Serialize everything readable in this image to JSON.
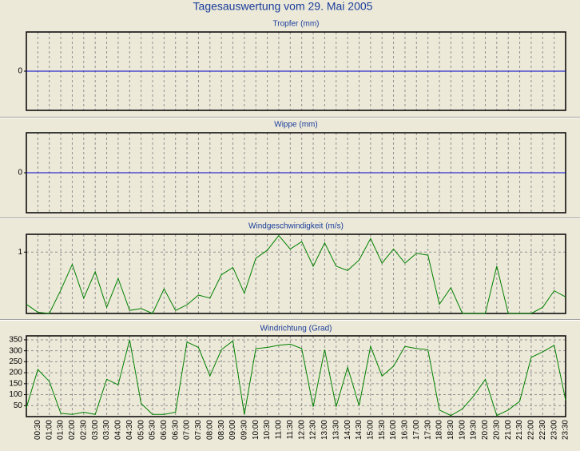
{
  "title": "Tagesauswertung vom 29. Mai 2005",
  "chart_data": [
    {
      "type": "line",
      "title": "Tropfer (mm)",
      "color": "#0000cc",
      "ylim": [
        -1,
        1
      ],
      "yticks": [
        0
      ],
      "grid": true,
      "values": [
        0,
        0,
        0,
        0,
        0,
        0,
        0,
        0,
        0,
        0,
        0,
        0,
        0,
        0,
        0,
        0,
        0,
        0,
        0,
        0,
        0,
        0,
        0,
        0,
        0,
        0,
        0,
        0,
        0,
        0,
        0,
        0,
        0,
        0,
        0,
        0,
        0,
        0,
        0,
        0,
        0,
        0,
        0,
        0,
        0,
        0,
        0,
        0
      ]
    },
    {
      "type": "line",
      "title": "Wippe (mm)",
      "color": "#0000cc",
      "ylim": [
        -1,
        1
      ],
      "yticks": [
        0
      ],
      "grid": true,
      "values": [
        0,
        0,
        0,
        0,
        0,
        0,
        0,
        0,
        0,
        0,
        0,
        0,
        0,
        0,
        0,
        0,
        0,
        0,
        0,
        0,
        0,
        0,
        0,
        0,
        0,
        0,
        0,
        0,
        0,
        0,
        0,
        0,
        0,
        0,
        0,
        0,
        0,
        0,
        0,
        0,
        0,
        0,
        0,
        0,
        0,
        0,
        0,
        0
      ]
    },
    {
      "type": "line",
      "title": "Windgeschwindigkeit (m/s)",
      "color": "#008000",
      "ylim": [
        0,
        1.29
      ],
      "yticks": [
        1
      ],
      "grid": true,
      "values": [
        0.15,
        0.02,
        0,
        0.38,
        0.8,
        0.25,
        0.68,
        0.1,
        0.57,
        0.05,
        0.08,
        0,
        0.4,
        0.05,
        0.14,
        0.3,
        0.25,
        0.63,
        0.75,
        0.33,
        0.9,
        1.03,
        1.27,
        1.05,
        1.17,
        0.77,
        1.15,
        0.77,
        0.7,
        0.87,
        1.22,
        0.82,
        1.05,
        0.82,
        0.98,
        0.95,
        0.15,
        0.42,
        0,
        0,
        0,
        0.77,
        0,
        0,
        0,
        0.1,
        0.37,
        0.27
      ]
    },
    {
      "type": "line",
      "title": "Windrichtung (Grad)",
      "color": "#008000",
      "ylim": [
        0,
        368
      ],
      "yticks": [
        50,
        100,
        150,
        200,
        250,
        300,
        350
      ],
      "grid": true,
      "categories": [
        null,
        "00:30",
        "01:00",
        "01:30",
        "02:00",
        "02:30",
        "03:00",
        "03:30",
        "04:00",
        "04:30",
        "05:00",
        "05:30",
        "06:00",
        "06:30",
        "07:00",
        "07:30",
        "08:00",
        "08:30",
        "09:00",
        "09:30",
        "10:00",
        "10:30",
        "11:00",
        "11:30",
        "12:00",
        "12:30",
        "13:00",
        "13:30",
        "14:00",
        "14:30",
        "15:00",
        "15:30",
        "16:00",
        "16:30",
        "17:00",
        "17:30",
        "18:00",
        "18:30",
        "19:00",
        "19:30",
        "20:00",
        "20:30",
        "21:00",
        "21:30",
        "22:00",
        "22:30",
        "23:00",
        "23:30"
      ],
      "values": [
        40,
        215,
        160,
        15,
        10,
        20,
        10,
        170,
        145,
        350,
        60,
        10,
        10,
        20,
        340,
        315,
        185,
        305,
        345,
        10,
        310,
        315,
        325,
        330,
        310,
        45,
        305,
        45,
        225,
        50,
        320,
        185,
        230,
        320,
        310,
        305,
        30,
        5,
        35,
        95,
        170,
        5,
        30,
        70,
        270,
        295,
        325,
        75
      ]
    }
  ]
}
